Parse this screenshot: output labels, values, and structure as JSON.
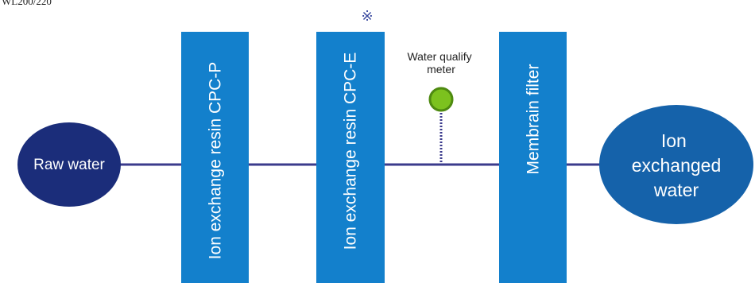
{
  "header": {
    "label": "WL200/220",
    "mark": "※"
  },
  "nodes": [
    {
      "label": "Raw water"
    },
    {
      "label": "Ion exchange resin CPC-P"
    },
    {
      "label": "Ion exchange resin CPC-E"
    },
    {
      "label": "Water qualify meter"
    },
    {
      "label": "Membrain filter"
    },
    {
      "label": "Ion exchanged water"
    }
  ]
}
